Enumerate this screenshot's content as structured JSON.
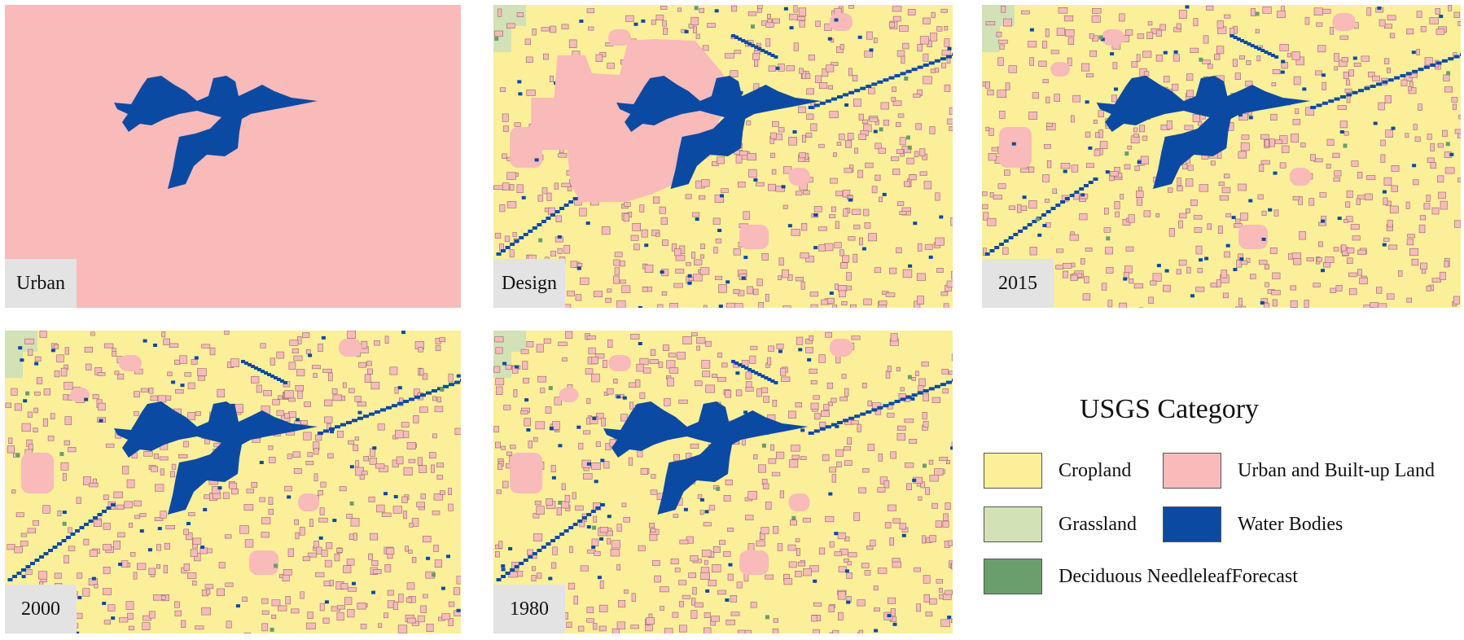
{
  "colors": {
    "cropland": "#fbef9a",
    "urban": "#f9baba",
    "grassland": "#d2e1b6",
    "water": "#0a4aa3",
    "deciduous": "#6a9e6c"
  },
  "panels": [
    {
      "label": "Urban",
      "fill": "urban-only",
      "has_buffer": false
    },
    {
      "label": "Design",
      "fill": "mixed",
      "has_buffer": true
    },
    {
      "label": "2015",
      "fill": "mixed",
      "has_buffer": false
    },
    {
      "label": "2000",
      "fill": "mixed",
      "has_buffer": false
    },
    {
      "label": "1980",
      "fill": "mixed",
      "has_buffer": false
    }
  ],
  "legend": {
    "title": "USGS Category",
    "items": [
      {
        "key": "cropland",
        "label": "Cropland"
      },
      {
        "key": "urban",
        "label": "Urban and Built-up Land"
      },
      {
        "key": "grassland",
        "label": "Grassland"
      },
      {
        "key": "water",
        "label": "Water Bodies"
      },
      {
        "key": "deciduous",
        "label": "Deciduous NeedleleafForecast"
      }
    ]
  }
}
